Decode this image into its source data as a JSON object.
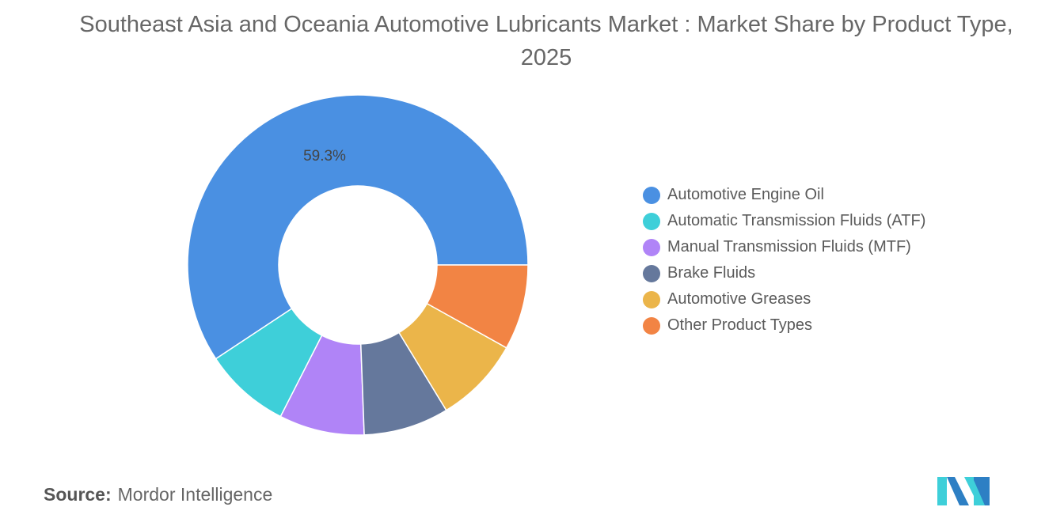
{
  "title": "Southeast Asia and Oceania Automotive Lubricants Market : Market Share by Product Type, 2025",
  "source_label": "Source:",
  "source_value": "Mordor Intelligence",
  "logo_text": "Mordor Intelligence",
  "chart_data": {
    "type": "pie",
    "donut": true,
    "title": "Southeast Asia and Oceania Automotive Lubricants Market : Market Share by Product Type, 2025",
    "unit": "%",
    "legend_position": "right",
    "values_note": "Only 59.3 is printed on the chart; the other five values are estimated from slice angles",
    "categories": [
      "Automotive Engine Oil",
      "Automatic Transmission Fluids (ATF)",
      "Manual Transmission Fluids (MTF)",
      "Brake Fluids",
      "Automotive Greases",
      "Other Product Types"
    ],
    "values": [
      59.3,
      8.2,
      8.1,
      8.1,
      8.2,
      8.1
    ],
    "value_is_estimate": [
      false,
      true,
      true,
      true,
      true,
      true
    ],
    "data_labels": [
      "59.3%",
      "",
      "",
      "",
      "",
      ""
    ],
    "colors": [
      "#4a90e2",
      "#3ecfd9",
      "#b084f7",
      "#65789c",
      "#ebb54a",
      "#f28444"
    ]
  }
}
